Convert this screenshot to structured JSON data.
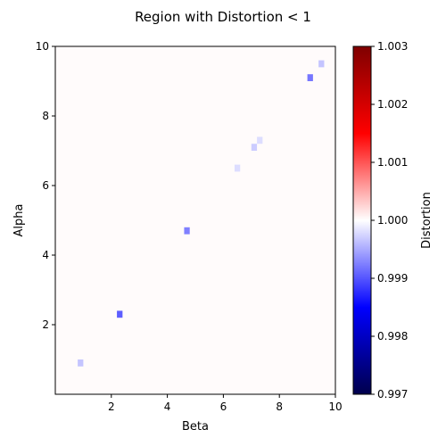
{
  "chart_data": {
    "type": "heatmap",
    "title": "Region with Distortion < 1",
    "xlabel": "Beta",
    "ylabel": "Alpha",
    "xlim": [
      0,
      10
    ],
    "ylim": [
      0,
      10
    ],
    "x_ticks": [
      "2",
      "4",
      "6",
      "8",
      "10"
    ],
    "y_ticks": [
      "2",
      "4",
      "6",
      "8",
      "10"
    ],
    "x_tick_values": [
      2,
      4,
      6,
      8,
      10
    ],
    "y_tick_values": [
      2,
      4,
      6,
      8,
      10
    ],
    "grid": false,
    "background_value": 1.0,
    "cell_size": 0.2,
    "colormap": "seismic",
    "colorbar": {
      "label": "Distortion",
      "vmin": 0.997,
      "vmax": 1.003,
      "ticks": [
        "0.997",
        "0.998",
        "0.999",
        "1.000",
        "1.001",
        "1.002",
        "1.003"
      ],
      "tick_values": [
        0.997,
        0.998,
        0.999,
        1.0,
        1.001,
        1.002,
        1.003
      ]
    },
    "cells": [
      {
        "beta": 0.9,
        "alpha": 0.9,
        "value": 0.99965
      },
      {
        "beta": 2.3,
        "alpha": 2.3,
        "value": 0.99905
      },
      {
        "beta": 4.7,
        "alpha": 4.7,
        "value": 0.99925
      },
      {
        "beta": 6.5,
        "alpha": 6.5,
        "value": 0.9998
      },
      {
        "beta": 7.1,
        "alpha": 7.1,
        "value": 0.9997
      },
      {
        "beta": 7.3,
        "alpha": 7.3,
        "value": 0.9998
      },
      {
        "beta": 9.1,
        "alpha": 9.1,
        "value": 0.9992
      },
      {
        "beta": 9.5,
        "alpha": 9.5,
        "value": 0.99965
      }
    ]
  }
}
